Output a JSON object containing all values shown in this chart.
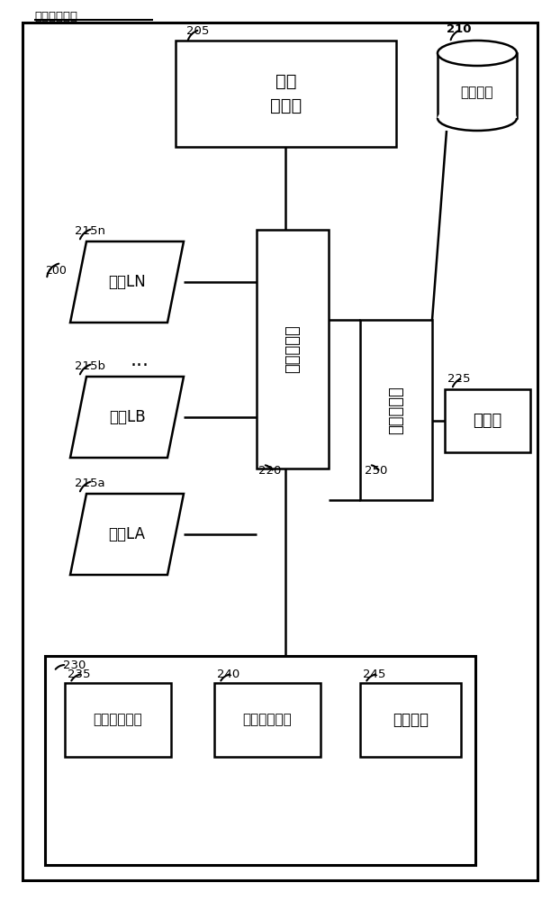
{
  "bg": "#ffffff",
  "title_text": "图像捕捼装置",
  "lw": 1.8,
  "labels": {
    "200": "200",
    "205": "205",
    "210": "210",
    "215a": "215a",
    "215b": "215b",
    "215n": "215n",
    "220": "220",
    "225": "225",
    "230": "230",
    "235": "235",
    "240": "240",
    "245": "245",
    "250": "250"
  },
  "texts": {
    "working_mem": "工作\n存储器",
    "storage": "存储装置",
    "cam_a": "相朼LA",
    "cam_b": "相朼LB",
    "cam_n": "相朼LN",
    "img_proc": "图像处理器",
    "dev_proc": "装置处理器",
    "display": "显示器",
    "capture": "捕捼控制模块",
    "stitch": "图像拼接模块",
    "os": "操作系统",
    "dots": "..."
  }
}
